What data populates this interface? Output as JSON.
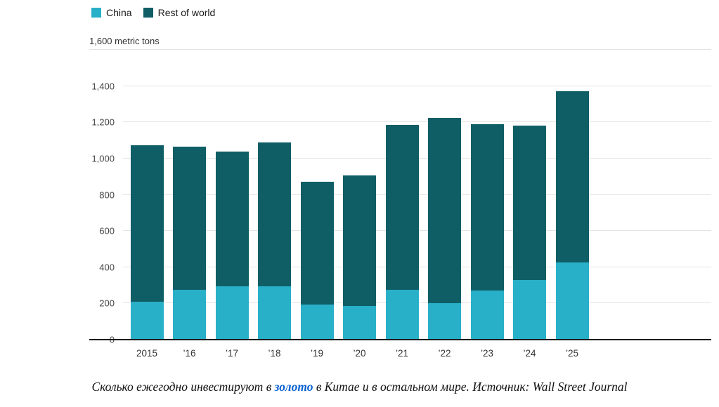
{
  "chart_data": {
    "type": "bar",
    "stacked": true,
    "categories": [
      "2015",
      "’16",
      "’17",
      "’18",
      "’19",
      "’20",
      "’21",
      "’22",
      "’23",
      "’24",
      "’25"
    ],
    "series": [
      {
        "name": "China",
        "color": "#29b0c9",
        "values": [
          210,
          275,
          295,
          295,
          195,
          185,
          275,
          200,
          270,
          330,
          425
        ]
      },
      {
        "name": "Rest of world",
        "color": "#0f5e66",
        "values": [
          865,
          790,
          745,
          795,
          675,
          720,
          910,
          1025,
          920,
          850,
          945
        ]
      }
    ],
    "ylim": [
      0,
      1600
    ],
    "yticks": [
      0,
      200,
      400,
      600,
      800,
      1000,
      1200,
      1400,
      1600
    ],
    "ytick_labels": [
      "0",
      "200",
      "400",
      "600",
      "800",
      "1,000",
      "1,200",
      "1,400",
      "1,600 metric tons"
    ],
    "grid": true,
    "legend_position": "top-left"
  },
  "caption": {
    "prefix": "Сколько ежегодно инвестируют в ",
    "link_text": "золото",
    "suffix": " в Китае и в остальном мире. Источник: Wall Street Journal",
    "link_color": "#0b62d4"
  }
}
